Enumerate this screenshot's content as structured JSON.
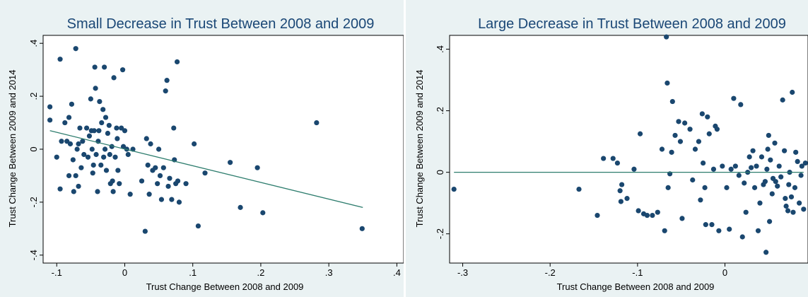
{
  "chart_data": [
    {
      "type": "scatter",
      "title": "Small Decrease in Trust Between 2008 and 2009",
      "xlabel": "Trust Change Between 2008 and 2009",
      "ylabel": "Trust Change Between 2009 and 2014",
      "xlim": [
        -0.12,
        0.41
      ],
      "ylim": [
        -0.43,
        0.43
      ],
      "xticks": [
        -0.1,
        0,
        0.1,
        0.2,
        0.3,
        0.4
      ],
      "xtick_labels": [
        "-.1",
        "0",
        ".1",
        ".2",
        ".3",
        ".4"
      ],
      "yticks": [
        -0.4,
        -0.2,
        0,
        0.2,
        0.4
      ],
      "ytick_labels": [
        "-.4",
        "-.2",
        "0",
        ".2",
        ".4"
      ],
      "grid": false,
      "marker_color": "#1a476f",
      "line_color": "#2e7d6e",
      "fit_line": {
        "x": [
          -0.11,
          0.35
        ],
        "y": [
          0.07,
          -0.22
        ]
      },
      "points": [
        [
          -0.11,
          0.16
        ],
        [
          -0.11,
          0.11
        ],
        [
          -0.1,
          -0.03
        ],
        [
          -0.095,
          0.34
        ],
        [
          -0.095,
          -0.15
        ],
        [
          -0.093,
          0.03
        ],
        [
          -0.088,
          0.1
        ],
        [
          -0.085,
          0.03
        ],
        [
          -0.082,
          0.12
        ],
        [
          -0.082,
          -0.1
        ],
        [
          -0.08,
          0.02
        ],
        [
          -0.078,
          0.17
        ],
        [
          -0.076,
          -0.04
        ],
        [
          -0.075,
          -0.16
        ],
        [
          -0.072,
          -0.1
        ],
        [
          -0.072,
          0.38
        ],
        [
          -0.07,
          0.0
        ],
        [
          -0.068,
          0.02
        ],
        [
          -0.068,
          -0.14
        ],
        [
          -0.066,
          0.08
        ],
        [
          -0.064,
          -0.07
        ],
        [
          -0.062,
          0.03
        ],
        [
          -0.06,
          -0.02
        ],
        [
          -0.056,
          0.08
        ],
        [
          -0.054,
          -0.03
        ],
        [
          -0.052,
          0.05
        ],
        [
          -0.05,
          0.19
        ],
        [
          -0.049,
          0.07
        ],
        [
          -0.048,
          0.0
        ],
        [
          -0.047,
          -0.09
        ],
        [
          -0.046,
          -0.06
        ],
        [
          -0.045,
          0.07
        ],
        [
          -0.044,
          0.31
        ],
        [
          -0.043,
          0.23
        ],
        [
          -0.042,
          -0.02
        ],
        [
          -0.04,
          -0.16
        ],
        [
          -0.039,
          0.03
        ],
        [
          -0.038,
          0.07
        ],
        [
          -0.037,
          0.18
        ],
        [
          -0.035,
          -0.06
        ],
        [
          -0.034,
          0.1
        ],
        [
          -0.032,
          0.15
        ],
        [
          -0.031,
          -0.03
        ],
        [
          -0.03,
          0.31
        ],
        [
          -0.029,
          0.0
        ],
        [
          -0.028,
          0.12
        ],
        [
          -0.027,
          -0.08
        ],
        [
          -0.025,
          0.06
        ],
        [
          -0.023,
          0.09
        ],
        [
          -0.022,
          -0.02
        ],
        [
          -0.021,
          -0.13
        ],
        [
          -0.019,
          0.01
        ],
        [
          -0.018,
          -0.12
        ],
        [
          -0.017,
          -0.16
        ],
        [
          -0.016,
          0.27
        ],
        [
          -0.014,
          -0.03
        ],
        [
          -0.012,
          0.08
        ],
        [
          -0.011,
          0.04
        ],
        [
          -0.01,
          -0.08
        ],
        [
          -0.008,
          -0.13
        ],
        [
          -0.005,
          0.08
        ],
        [
          -0.003,
          0.3
        ],
        [
          -0.002,
          0.01
        ],
        [
          0.0,
          0.07
        ],
        [
          0.003,
          0.0
        ],
        [
          0.005,
          -0.02
        ],
        [
          0.008,
          -0.17
        ],
        [
          0.012,
          0.0
        ],
        [
          0.025,
          -0.12
        ],
        [
          0.03,
          -0.31
        ],
        [
          0.032,
          0.04
        ],
        [
          0.034,
          -0.06
        ],
        [
          0.036,
          -0.17
        ],
        [
          0.038,
          0.02
        ],
        [
          0.041,
          -0.08
        ],
        [
          0.045,
          -0.07
        ],
        [
          0.048,
          -0.13
        ],
        [
          0.05,
          0.0
        ],
        [
          0.052,
          -0.1
        ],
        [
          0.054,
          -0.19
        ],
        [
          0.057,
          -0.07
        ],
        [
          0.06,
          0.22
        ],
        [
          0.062,
          0.26
        ],
        [
          0.064,
          -0.14
        ],
        [
          0.066,
          -0.11
        ],
        [
          0.069,
          -0.19
        ],
        [
          0.072,
          0.08
        ],
        [
          0.073,
          -0.04
        ],
        [
          0.075,
          -0.13
        ],
        [
          0.077,
          0.33
        ],
        [
          0.078,
          -0.12
        ],
        [
          0.08,
          -0.2
        ],
        [
          0.09,
          -0.13
        ],
        [
          0.102,
          0.02
        ],
        [
          0.108,
          -0.29
        ],
        [
          0.118,
          -0.09
        ],
        [
          0.155,
          -0.05
        ],
        [
          0.17,
          -0.22
        ],
        [
          0.195,
          -0.07
        ],
        [
          0.203,
          -0.24
        ],
        [
          0.282,
          0.1
        ],
        [
          0.349,
          -0.3
        ]
      ]
    },
    {
      "type": "scatter",
      "title": "Large Decrease in Trust Between 2008 and 2009",
      "xlabel": "Trust Change Between 2008 and 2009",
      "ylabel": "Trust Change Between 2009 and 2014",
      "xlim": [
        -0.315,
        0.095
      ],
      "ylim": [
        -0.295,
        0.445
      ],
      "xticks": [
        -0.3,
        -0.2,
        -0.1,
        0,
        0.1
      ],
      "xtick_labels": [
        "-.3",
        "-.2",
        "-.1",
        "0",
        ".1"
      ],
      "yticks": [
        -0.2,
        0,
        0.2,
        0.4
      ],
      "ytick_labels": [
        "-.2",
        "0",
        ".2",
        ".4"
      ],
      "grid": false,
      "marker_color": "#1a476f",
      "line_color": "#2e7d6e",
      "fit_line": {
        "x": [
          -0.31,
          0.09
        ],
        "y": [
          0.0,
          0.0
        ]
      },
      "points": [
        [
          -0.31,
          -0.055
        ],
        [
          -0.167,
          -0.055
        ],
        [
          -0.146,
          -0.14
        ],
        [
          -0.139,
          0.045
        ],
        [
          -0.128,
          0.045
        ],
        [
          -0.123,
          0.03
        ],
        [
          -0.12,
          -0.06
        ],
        [
          -0.119,
          -0.095
        ],
        [
          -0.118,
          -0.04
        ],
        [
          -0.112,
          -0.085
        ],
        [
          -0.104,
          0.01
        ],
        [
          -0.099,
          -0.125
        ],
        [
          -0.097,
          0.125
        ],
        [
          -0.093,
          -0.135
        ],
        [
          -0.089,
          -0.14
        ],
        [
          -0.083,
          -0.14
        ],
        [
          -0.077,
          -0.13
        ],
        [
          -0.072,
          0.075
        ],
        [
          -0.069,
          -0.19
        ],
        [
          -0.067,
          0.44
        ],
        [
          -0.066,
          0.29
        ],
        [
          -0.065,
          -0.05
        ],
        [
          -0.063,
          -0.005
        ],
        [
          -0.061,
          0.065
        ],
        [
          -0.06,
          0.23
        ],
        [
          -0.057,
          0.12
        ],
        [
          -0.053,
          0.165
        ],
        [
          -0.051,
          0.1
        ],
        [
          -0.049,
          -0.15
        ],
        [
          -0.046,
          0.16
        ],
        [
          -0.04,
          0.14
        ],
        [
          -0.037,
          -0.025
        ],
        [
          -0.034,
          0.075
        ],
        [
          -0.03,
          0.1
        ],
        [
          -0.028,
          -0.09
        ],
        [
          -0.026,
          0.19
        ],
        [
          -0.025,
          0.03
        ],
        [
          -0.023,
          -0.05
        ],
        [
          -0.022,
          -0.17
        ],
        [
          -0.02,
          0.18
        ],
        [
          -0.018,
          0.125
        ],
        [
          -0.015,
          -0.17
        ],
        [
          -0.013,
          0.01
        ],
        [
          -0.011,
          0.15
        ],
        [
          -0.009,
          0.14
        ],
        [
          -0.007,
          -0.19
        ],
        [
          -0.003,
          0.02
        ],
        [
          0.002,
          -0.05
        ],
        [
          0.005,
          -0.185
        ],
        [
          0.007,
          0.01
        ],
        [
          0.01,
          0.24
        ],
        [
          0.012,
          0.02
        ],
        [
          0.016,
          -0.01
        ],
        [
          0.018,
          0.22
        ],
        [
          0.02,
          -0.21
        ],
        [
          0.022,
          -0.035
        ],
        [
          0.024,
          -0.13
        ],
        [
          0.026,
          0.0
        ],
        [
          0.028,
          0.05
        ],
        [
          0.03,
          0.015
        ],
        [
          0.032,
          0.07
        ],
        [
          0.034,
          -0.05
        ],
        [
          0.036,
          0.02
        ],
        [
          0.038,
          -0.19
        ],
        [
          0.04,
          -0.1
        ],
        [
          0.042,
          0.05
        ],
        [
          0.044,
          -0.04
        ],
        [
          0.046,
          -0.03
        ],
        [
          0.047,
          -0.26
        ],
        [
          0.048,
          0.01
        ],
        [
          0.049,
          0.075
        ],
        [
          0.05,
          0.12
        ],
        [
          0.051,
          -0.16
        ],
        [
          0.052,
          0.04
        ],
        [
          0.054,
          -0.07
        ],
        [
          0.055,
          -0.02
        ],
        [
          0.057,
          0.095
        ],
        [
          0.058,
          -0.03
        ],
        [
          0.06,
          -0.045
        ],
        [
          0.062,
          0.02
        ],
        [
          0.064,
          -0.015
        ],
        [
          0.066,
          0.235
        ],
        [
          0.068,
          0.07
        ],
        [
          0.069,
          -0.085
        ],
        [
          0.07,
          -0.11
        ],
        [
          0.072,
          -0.125
        ],
        [
          0.073,
          -0.04
        ],
        [
          0.074,
          0.0
        ],
        [
          0.076,
          -0.08
        ],
        [
          0.077,
          0.26
        ],
        [
          0.078,
          -0.13
        ],
        [
          0.08,
          -0.05
        ],
        [
          0.081,
          0.065
        ],
        [
          0.083,
          0.035
        ],
        [
          0.085,
          -0.1
        ],
        [
          0.087,
          -0.01
        ],
        [
          0.088,
          0.02
        ],
        [
          0.09,
          -0.12
        ],
        [
          0.092,
          0.03
        ]
      ]
    }
  ]
}
